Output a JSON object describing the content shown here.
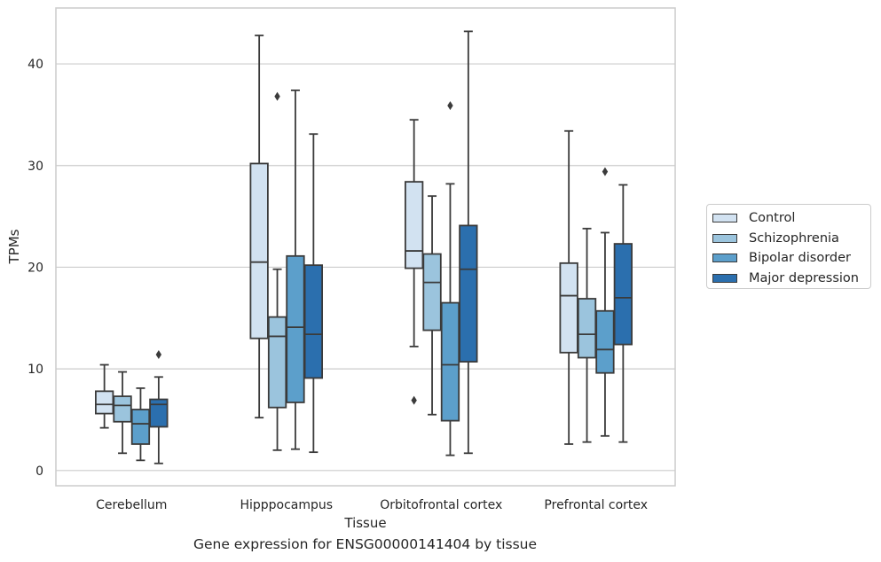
{
  "caption": "Gene expression for ENSG00000141404 by tissue",
  "chart_data": {
    "type": "box",
    "xlabel": "Tissue",
    "ylabel": "TPMs",
    "ylim": [
      -1.5,
      45.5
    ],
    "yticks": [
      0,
      10,
      20,
      30,
      40
    ],
    "grid": "horizontal",
    "legend_position": "right",
    "categories": [
      "Cerebellum",
      "Hipppocampus",
      "Orbitofrontal cortex",
      "Prefrontal cortex"
    ],
    "series": [
      {
        "name": "Control",
        "color": "#d2e2f1",
        "boxes": [
          {
            "whisker_low": 4.2,
            "q1": 5.6,
            "median": 6.5,
            "q3": 7.8,
            "whisker_high": 10.4,
            "outliers": []
          },
          {
            "whisker_low": 5.2,
            "q1": 13.0,
            "median": 20.5,
            "q3": 30.2,
            "whisker_high": 42.8,
            "outliers": []
          },
          {
            "whisker_low": 12.2,
            "q1": 19.9,
            "median": 21.6,
            "q3": 28.4,
            "whisker_high": 34.5,
            "outliers": [
              6.9
            ]
          },
          {
            "whisker_low": 2.6,
            "q1": 11.6,
            "median": 17.2,
            "q3": 20.4,
            "whisker_high": 33.4,
            "outliers": []
          }
        ]
      },
      {
        "name": "Schizophrenia",
        "color": "#9bc4dd",
        "boxes": [
          {
            "whisker_low": 1.7,
            "q1": 4.8,
            "median": 6.4,
            "q3": 7.3,
            "whisker_high": 9.7,
            "outliers": []
          },
          {
            "whisker_low": 2.0,
            "q1": 6.2,
            "median": 13.2,
            "q3": 15.1,
            "whisker_high": 19.8,
            "outliers": [
              36.8
            ]
          },
          {
            "whisker_low": 5.5,
            "q1": 13.8,
            "median": 18.5,
            "q3": 21.3,
            "whisker_high": 27.0,
            "outliers": []
          },
          {
            "whisker_low": 2.8,
            "q1": 11.1,
            "median": 13.4,
            "q3": 16.9,
            "whisker_high": 23.8,
            "outliers": []
          }
        ]
      },
      {
        "name": "Bipolar disorder",
        "color": "#5c9fcb",
        "boxes": [
          {
            "whisker_low": 1.0,
            "q1": 2.6,
            "median": 4.6,
            "q3": 6.0,
            "whisker_high": 8.1,
            "outliers": []
          },
          {
            "whisker_low": 2.1,
            "q1": 6.7,
            "median": 14.1,
            "q3": 21.1,
            "whisker_high": 37.4,
            "outliers": []
          },
          {
            "whisker_low": 1.5,
            "q1": 4.9,
            "median": 10.4,
            "q3": 16.5,
            "whisker_high": 28.2,
            "outliers": [
              35.9
            ]
          },
          {
            "whisker_low": 3.4,
            "q1": 9.6,
            "median": 11.9,
            "q3": 15.7,
            "whisker_high": 23.4,
            "outliers": [
              29.4
            ]
          }
        ]
      },
      {
        "name": "Major depression",
        "color": "#2b6fae",
        "boxes": [
          {
            "whisker_low": 0.7,
            "q1": 4.3,
            "median": 6.5,
            "q3": 7.0,
            "whisker_high": 9.2,
            "outliers": [
              11.4
            ]
          },
          {
            "whisker_low": 1.8,
            "q1": 9.1,
            "median": 13.4,
            "q3": 20.2,
            "whisker_high": 33.1,
            "outliers": []
          },
          {
            "whisker_low": 1.7,
            "q1": 10.7,
            "median": 19.8,
            "q3": 24.1,
            "whisker_high": 43.2,
            "outliers": []
          },
          {
            "whisker_low": 2.8,
            "q1": 12.4,
            "median": 17.0,
            "q3": 22.3,
            "whisker_high": 28.1,
            "outliers": []
          }
        ]
      }
    ]
  }
}
